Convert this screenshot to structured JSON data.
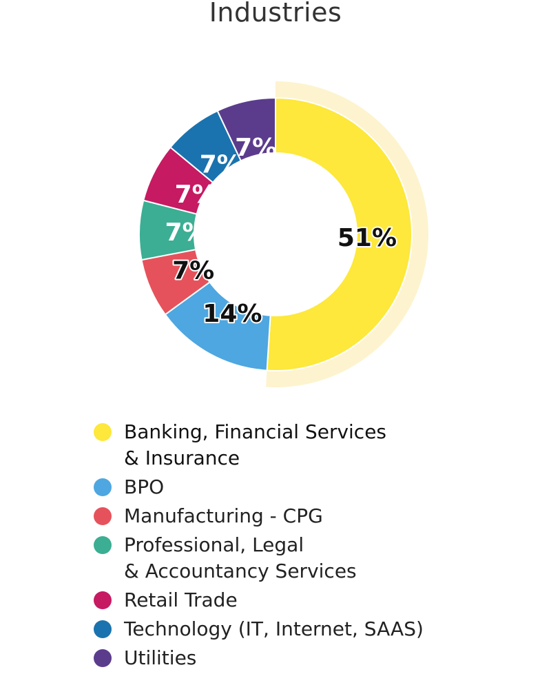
{
  "chart_data": {
    "type": "pie",
    "title": "Industries",
    "categories": [
      "Banking, Financial Services\n& Insurance",
      "BPO",
      "Manufacturing - CPG",
      "Professional, Legal\n& Accountancy Services",
      "Retail Trade",
      "Technology (IT, Internet, SAAS)",
      "Utilities"
    ],
    "values": [
      51,
      14,
      7,
      7,
      7,
      7,
      7
    ],
    "labels": [
      "51%",
      "14%",
      "7%",
      "7%",
      "7%",
      "7%",
      "7%"
    ],
    "colors": [
      "#FDE83B",
      "#4EA7E0",
      "#E6525B",
      "#3BAE93",
      "#C61A62",
      "#1A73AE",
      "#5B3C8C"
    ],
    "highlight_color": "#FDF3CE",
    "legend_position": "bottom"
  }
}
